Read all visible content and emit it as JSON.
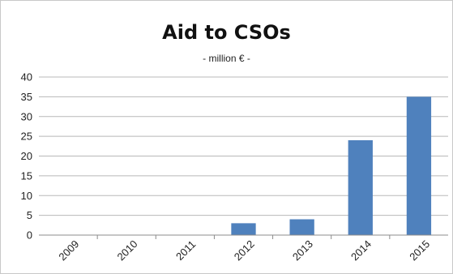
{
  "chart_data": {
    "type": "bar",
    "title": "Aid to CSOs",
    "subtitle": "- million € -",
    "xlabel": "",
    "ylabel": "",
    "categories": [
      "2009",
      "2010",
      "2011",
      "2012",
      "2013",
      "2014",
      "2015"
    ],
    "values": [
      0,
      0,
      0,
      3,
      4,
      24,
      35
    ],
    "ylim": [
      0,
      40
    ],
    "yticks": [
      0,
      5,
      10,
      15,
      20,
      25,
      30,
      35,
      40
    ],
    "grid": true,
    "legend": "none",
    "bar_color": "#4f81bd"
  }
}
